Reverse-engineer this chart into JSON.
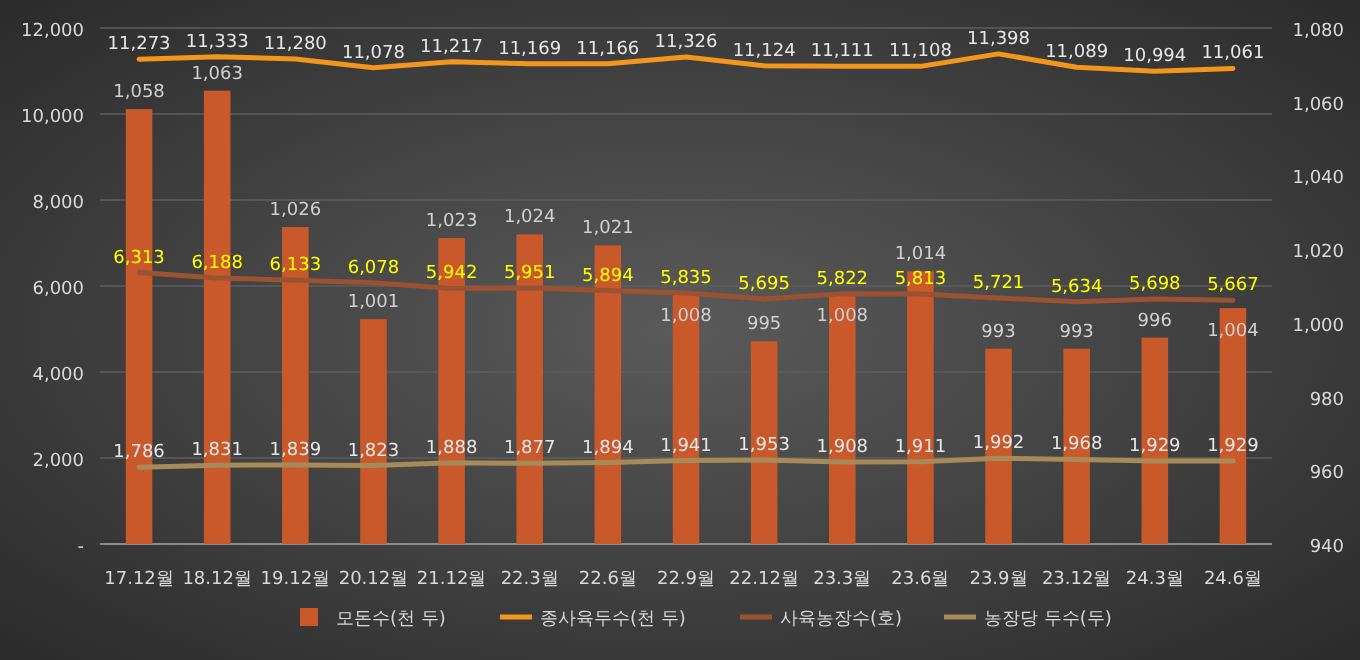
{
  "chart_data": {
    "type": "bar",
    "categories": [
      "17.12월",
      "18.12월",
      "19.12월",
      "20.12월",
      "21.12월",
      "22.3월",
      "22.6월",
      "22.9월",
      "22.12월",
      "23.3월",
      "23.6월",
      "23.9월",
      "23.12월",
      "24.3월",
      "24.6월"
    ],
    "series": [
      {
        "name": "모돈수(천 두)",
        "axis": "y2",
        "color": "#c9592b",
        "values": [
          1058,
          1063,
          1026,
          1001,
          1023,
          1024,
          1021,
          1008,
          995,
          1008,
          1014,
          993,
          993,
          996,
          1004
        ],
        "value_labels": [
          "1,058",
          "1,063",
          "1,026",
          "1,001",
          "1,023",
          "1,024",
          "1,021",
          "1,008",
          "995",
          "1,008",
          "1,014",
          "993",
          "993",
          "996",
          "1,004"
        ]
      },
      {
        "name": "종사육두수(천 두)",
        "type": "line",
        "color": "#f5961c",
        "values": [
          11273,
          11333,
          11280,
          11078,
          11217,
          11169,
          11166,
          11326,
          11124,
          11111,
          11108,
          11398,
          11089,
          10994,
          11061
        ],
        "value_labels": [
          "11,273",
          "11,333",
          "11,280",
          "11,078",
          "11,217",
          "11,169",
          "11,166",
          "11,326",
          "11,124",
          "11,111",
          "11,108",
          "11,398",
          "11,089",
          "10,994",
          "11,061"
        ]
      },
      {
        "name": "사육농장수(호)",
        "type": "line",
        "color": "#9a5232",
        "values": [
          6313,
          6188,
          6133,
          6078,
          5942,
          5951,
          5894,
          5835,
          5695,
          5822,
          5813,
          5721,
          5634,
          5698,
          5667
        ],
        "value_labels": [
          "6,313",
          "6,188",
          "6,133",
          "6,078",
          "5,942",
          "5,951",
          "5,894",
          "5,835",
          "5,695",
          "5,822",
          "5,813",
          "5,721",
          "5,634",
          "5,698",
          "5,667"
        ]
      },
      {
        "name": "농장당 두수(두)",
        "type": "line",
        "color": "#a88a58",
        "values": [
          1786,
          1831,
          1839,
          1823,
          1888,
          1877,
          1894,
          1941,
          1953,
          1908,
          1911,
          1992,
          1968,
          1929,
          1929
        ],
        "value_labels": [
          "1,786",
          "1,831",
          "1,839",
          "1,823",
          "1,888",
          "1,877",
          "1,894",
          "1,941",
          "1,953",
          "1,908",
          "1,911",
          "1,992",
          "1,968",
          "1,929",
          "1,929"
        ]
      }
    ],
    "ylim": [
      0,
      12000
    ],
    "yticks": [
      {
        "value": 0,
        "label": "-"
      },
      {
        "value": 2000,
        "label": "2,000"
      },
      {
        "value": 4000,
        "label": "4,000"
      },
      {
        "value": 6000,
        "label": "6,000"
      },
      {
        "value": 8000,
        "label": "8,000"
      },
      {
        "value": 10000,
        "label": "10,000"
      },
      {
        "value": 12000,
        "label": "12,000"
      }
    ],
    "y2lim": [
      940,
      1080
    ],
    "y2ticks": [
      940,
      960,
      980,
      {
        "value": 1000,
        "label": "1,000"
      },
      {
        "value": 1020,
        "label": "1,020"
      },
      {
        "value": 1040,
        "label": "1,040"
      },
      {
        "value": 1060,
        "label": "1,060"
      },
      {
        "value": 1080,
        "label": "1,080"
      }
    ],
    "grid": "y",
    "legend": "bottom",
    "marker": "none",
    "line_style": "solid"
  }
}
